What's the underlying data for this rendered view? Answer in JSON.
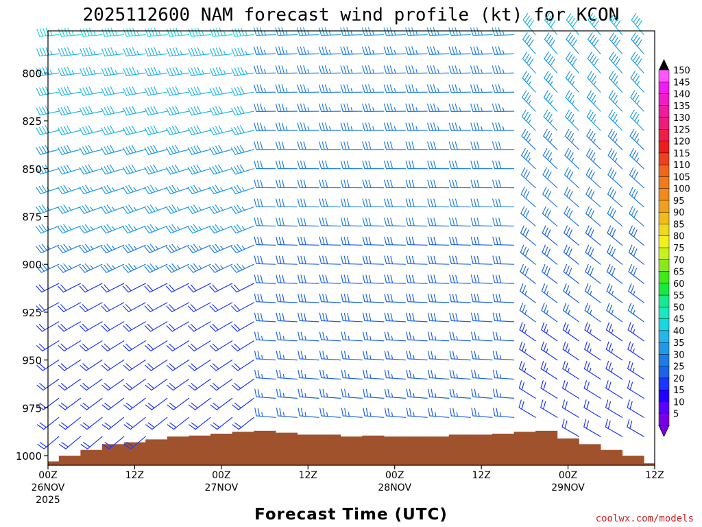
{
  "chart_data": {
    "type": "wind-barb-time-height",
    "title": "2025112600 NAM forecast wind profile (kt) for KCON",
    "xlabel": "Forecast Time (UTC)",
    "credit": "coolwx.com/models",
    "hours_range": [
      0,
      84
    ],
    "pressure_range": [
      1005,
      778
    ],
    "x_ticks": [
      {
        "hour": 0,
        "label": "00Z",
        "date": "26NOV",
        "year": "2025"
      },
      {
        "hour": 12,
        "label": "12Z",
        "date": "",
        "year": ""
      },
      {
        "hour": 24,
        "label": "00Z",
        "date": "27NOV",
        "year": ""
      },
      {
        "hour": 36,
        "label": "12Z",
        "date": "",
        "year": ""
      },
      {
        "hour": 48,
        "label": "00Z",
        "date": "28NOV",
        "year": ""
      },
      {
        "hour": 60,
        "label": "12Z",
        "date": "",
        "year": ""
      },
      {
        "hour": 72,
        "label": "00Z",
        "date": "29NOV",
        "year": ""
      },
      {
        "hour": 84,
        "label": "12Z",
        "date": "",
        "year": ""
      }
    ],
    "y_ticks": [
      {
        "p": 800,
        "label": "800"
      },
      {
        "p": 825,
        "label": "825"
      },
      {
        "p": 850,
        "label": "850"
      },
      {
        "p": 875,
        "label": "875"
      },
      {
        "p": 900,
        "label": "900"
      },
      {
        "p": 925,
        "label": "925"
      },
      {
        "p": 950,
        "label": "950"
      },
      {
        "p": 975,
        "label": "975"
      },
      {
        "p": 1000,
        "label": "1000"
      }
    ],
    "colorbar": {
      "levels": [
        5,
        10,
        15,
        20,
        25,
        30,
        35,
        40,
        45,
        50,
        55,
        60,
        65,
        70,
        75,
        80,
        85,
        90,
        95,
        100,
        105,
        110,
        115,
        120,
        125,
        130,
        135,
        140,
        145,
        150
      ],
      "colors": [
        "#7a00e6",
        "#5a00ff",
        "#2200ff",
        "#1c36ff",
        "#1b63e8",
        "#1e7ce8",
        "#1e9ae8",
        "#24b6e8",
        "#19d6e0",
        "#19e8c0",
        "#19e890",
        "#19e840",
        "#40e81c",
        "#8ce81c",
        "#c8f01c",
        "#f0f01c",
        "#f0d81c",
        "#f0bc1c",
        "#f0a01c",
        "#f08c1c",
        "#f07a1c",
        "#f0661c",
        "#f0401c",
        "#f01c1c",
        "#f01c4a",
        "#f01c7a",
        "#f01ca0",
        "#f01cc8",
        "#f01cf0",
        "#ff55ff"
      ]
    },
    "terrain_surface_pressure": [
      {
        "hour": 0,
        "p": 1003
      },
      {
        "hour": 3,
        "p": 1000
      },
      {
        "hour": 6,
        "p": 997
      },
      {
        "hour": 9,
        "p": 994
      },
      {
        "hour": 12,
        "p": 993
      },
      {
        "hour": 15,
        "p": 991.5
      },
      {
        "hour": 18,
        "p": 990
      },
      {
        "hour": 21,
        "p": 989.5
      },
      {
        "hour": 24,
        "p": 988.5
      },
      {
        "hour": 27,
        "p": 987.5
      },
      {
        "hour": 30,
        "p": 987
      },
      {
        "hour": 33,
        "p": 988
      },
      {
        "hour": 36,
        "p": 989
      },
      {
        "hour": 39,
        "p": 989
      },
      {
        "hour": 42,
        "p": 990
      },
      {
        "hour": 45,
        "p": 989.5
      },
      {
        "hour": 48,
        "p": 990
      },
      {
        "hour": 51,
        "p": 990
      },
      {
        "hour": 54,
        "p": 990
      },
      {
        "hour": 57,
        "p": 989
      },
      {
        "hour": 60,
        "p": 989
      },
      {
        "hour": 63,
        "p": 988.5
      },
      {
        "hour": 66,
        "p": 987.5
      },
      {
        "hour": 69,
        "p": 987
      },
      {
        "hour": 72,
        "p": 991
      },
      {
        "hour": 75,
        "p": 994
      },
      {
        "hour": 78,
        "p": 997
      },
      {
        "hour": 81,
        "p": 1000
      },
      {
        "hour": 84,
        "p": 1004
      }
    ],
    "wind_profile": {
      "levels_hpa": [
        780,
        790,
        800,
        810,
        820,
        830,
        840,
        850,
        860,
        870,
        880,
        890,
        900,
        910,
        920,
        930,
        940,
        950,
        960,
        970,
        980,
        990
      ],
      "time_step_hours": 3,
      "segments": [
        {
          "hours": [
            0,
            30
          ],
          "dir_top": 265,
          "dir_bottom": 230,
          "speed_top": 45,
          "speed_bottom": 25,
          "low_level_jet_speed": 20
        },
        {
          "hours": [
            30,
            66
          ],
          "dir_top": 268,
          "dir_bottom": 275,
          "speed_top": 35,
          "speed_bottom": 25
        },
        {
          "hours": [
            66,
            84
          ],
          "dir_top": 320,
          "dir_bottom": 300,
          "speed_top": 40,
          "speed_bottom": 20
        }
      ]
    }
  }
}
